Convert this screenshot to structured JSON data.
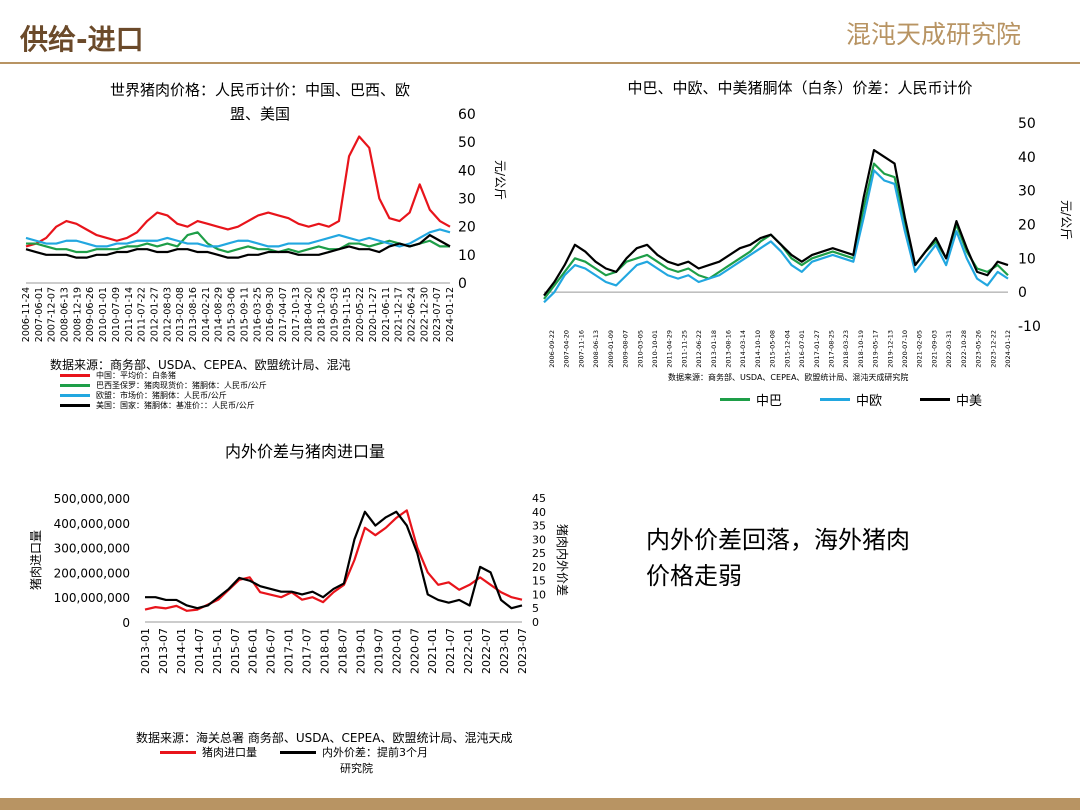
{
  "header": {
    "title": "供给-进口",
    "logo_text": "混沌天成研究院"
  },
  "colors": {
    "red": "#e8141b",
    "green": "#1e9e48",
    "blue": "#22a7e0",
    "black": "#000000",
    "gold": "#b89463",
    "brown": "#6b4a2a"
  },
  "note": {
    "line1": "内外价差回落，海外猪肉",
    "line2": "价格走弱"
  },
  "chart_data": [
    {
      "id": "world_pork_price",
      "type": "line",
      "title_line1": "世界猪肉价格：人民币计价：中国、巴西、欧",
      "title_line2": "盟、美国",
      "ylabel": "元/公斤",
      "ylim": [
        0,
        60
      ],
      "y_ticks": [
        "0",
        "10",
        "20",
        "30",
        "40",
        "50",
        "60"
      ],
      "x_ticks": [
        "2006-11-24",
        "2007-06-01",
        "2007-12-07",
        "2008-06-13",
        "2008-12-19",
        "2009-06-26",
        "2010-01-01",
        "2010-07-09",
        "2011-01-14",
        "2011-07-22",
        "2012-01-27",
        "2012-08-03",
        "2013-02-08",
        "2013-08-16",
        "2014-02-21",
        "2014-08-29",
        "2015-03-06",
        "2015-09-11",
        "2016-03-25",
        "2016-09-30",
        "2017-04-07",
        "2017-10-13",
        "2018-04-20",
        "2018-10-26",
        "2019-05-03",
        "2019-11-15",
        "2020-05-22",
        "2020-11-27",
        "2021-06-11",
        "2021-12-17",
        "2022-06-24",
        "2022-12-30",
        "2023-07-07",
        "2024-01-12"
      ],
      "source": "数据来源：商务部、USDA、CEPEA、欧盟统计局、混沌",
      "legend": [
        {
          "name": "中国：平均价：白条猪",
          "color": "#e8141b"
        },
        {
          "name": "巴西圣保罗：猪肉现货价：猪胴体：人民币/公斤",
          "color": "#1e9e48"
        },
        {
          "name": "欧盟：市场价：猪胴体：人民币/公斤",
          "color": "#22a7e0"
        },
        {
          "name": "美国：国家：猪胴体：基准价：：人民币/公斤",
          "color": "#000000"
        }
      ],
      "series": [
        {
          "name": "中国",
          "color": "#e8141b",
          "values": [
            13,
            14,
            16,
            20,
            22,
            21,
            19,
            17,
            16,
            15,
            16,
            18,
            22,
            25,
            24,
            21,
            20,
            22,
            21,
            20,
            19,
            20,
            22,
            24,
            25,
            24,
            23,
            21,
            20,
            21,
            20,
            22,
            45,
            52,
            48,
            30,
            23,
            22,
            25,
            35,
            26,
            22,
            20
          ]
        },
        {
          "name": "巴西",
          "color": "#1e9e48",
          "values": [
            14,
            14,
            13,
            12,
            12,
            11,
            11,
            12,
            12,
            12,
            13,
            13,
            14,
            13,
            14,
            13,
            17,
            18,
            14,
            12,
            11,
            12,
            13,
            12,
            12,
            11,
            12,
            11,
            12,
            13,
            12,
            12,
            14,
            14,
            13,
            14,
            15,
            14,
            13,
            14,
            15,
            13,
            13
          ]
        },
        {
          "name": "欧盟",
          "color": "#22a7e0",
          "values": [
            16,
            15,
            14,
            14,
            15,
            15,
            14,
            13,
            13,
            14,
            14,
            15,
            15,
            15,
            16,
            15,
            14,
            14,
            13,
            13,
            14,
            15,
            15,
            14,
            13,
            13,
            14,
            14,
            14,
            15,
            16,
            17,
            16,
            15,
            16,
            15,
            14,
            13,
            14,
            16,
            18,
            19,
            18
          ]
        },
        {
          "name": "美国",
          "color": "#000000",
          "values": [
            12,
            11,
            10,
            10,
            10,
            9,
            9,
            10,
            10,
            11,
            11,
            12,
            12,
            11,
            11,
            12,
            12,
            11,
            11,
            10,
            9,
            9,
            10,
            10,
            11,
            11,
            11,
            10,
            10,
            10,
            11,
            12,
            13,
            12,
            12,
            11,
            13,
            14,
            13,
            14,
            17,
            15,
            13
          ]
        }
      ]
    },
    {
      "id": "carcass_spread",
      "type": "line",
      "title": "中巴、中欧、中美猪胴体（白条）价差：人民币计价",
      "ylabel": "元/公斤",
      "ylim": [
        -10,
        50
      ],
      "y_ticks": [
        "-10",
        "0",
        "10",
        "20",
        "30",
        "40",
        "50"
      ],
      "x_ticks": [
        "2006-09-22",
        "2007-04-20",
        "2007-11-16",
        "2008-06-13",
        "2009-01-09",
        "2009-08-07",
        "2010-03-05",
        "2010-10-01",
        "2011-04-29",
        "2011-11-25",
        "2012-06-22",
        "2013-01-18",
        "2013-08-16",
        "2014-03-14",
        "2014-10-10",
        "2015-05-08",
        "2015-12-04",
        "2016-07-01",
        "2017-01-27",
        "2017-08-25",
        "2018-03-23",
        "2018-10-19",
        "2019-05-17",
        "2019-12-13",
        "2020-07-10",
        "2021-02-05",
        "2021-09-03",
        "2022-03-31",
        "2022-10-28",
        "2023-05-26",
        "2023-12-22",
        "2024-01-12"
      ],
      "source": "数据来源：商务部、USDA、CEPEA、欧盟统计局、混沌天成研究院",
      "legend": [
        {
          "name": "中巴",
          "color": "#1e9e48"
        },
        {
          "name": "中欧",
          "color": "#22a7e0"
        },
        {
          "name": "中美",
          "color": "#000000"
        }
      ],
      "series": [
        {
          "name": "中巴",
          "color": "#1e9e48",
          "values": [
            -2,
            2,
            6,
            10,
            9,
            7,
            5,
            6,
            9,
            10,
            11,
            9,
            7,
            6,
            7,
            5,
            4,
            6,
            8,
            10,
            12,
            15,
            17,
            14,
            10,
            8,
            10,
            11,
            12,
            11,
            10,
            25,
            38,
            35,
            34,
            20,
            8,
            12,
            15,
            10,
            20,
            12,
            7,
            6,
            8,
            5
          ]
        },
        {
          "name": "中欧",
          "color": "#22a7e0",
          "values": [
            -3,
            0,
            5,
            8,
            7,
            5,
            3,
            2,
            5,
            8,
            9,
            7,
            5,
            4,
            5,
            3,
            4,
            5,
            7,
            9,
            11,
            13,
            15,
            12,
            8,
            6,
            9,
            10,
            11,
            10,
            9,
            22,
            36,
            33,
            32,
            18,
            6,
            10,
            14,
            8,
            18,
            10,
            4,
            2,
            6,
            4
          ]
        },
        {
          "name": "中美",
          "color": "#000000",
          "values": [
            -1,
            3,
            8,
            14,
            12,
            9,
            7,
            6,
            10,
            13,
            14,
            11,
            9,
            8,
            9,
            7,
            8,
            9,
            11,
            13,
            14,
            16,
            17,
            14,
            11,
            9,
            11,
            12,
            13,
            12,
            11,
            28,
            42,
            40,
            38,
            22,
            8,
            12,
            16,
            10,
            21,
            13,
            6,
            5,
            9,
            8
          ]
        }
      ]
    },
    {
      "id": "spread_vs_import",
      "type": "line",
      "title": "内外价差与猪肉进口量",
      "ylabel_left": "猪肉进口量",
      "ylabel_right": "猪肉内外价差",
      "ylim_left": [
        0,
        500000000
      ],
      "ylim_right": [
        0,
        45
      ],
      "y_ticks_left": [
        "0",
        "100,000,000",
        "200,000,000",
        "300,000,000",
        "400,000,000",
        "500,000,000"
      ],
      "y_ticks_right": [
        "0",
        "5",
        "10",
        "15",
        "20",
        "25",
        "30",
        "35",
        "40",
        "45"
      ],
      "x_ticks": [
        "2013-01",
        "2013-07",
        "2014-01",
        "2014-07",
        "2015-01",
        "2015-07",
        "2016-01",
        "2016-07",
        "2017-01",
        "2017-07",
        "2018-01",
        "2018-07",
        "2019-01",
        "2019-07",
        "2020-01",
        "2020-07",
        "2021-01",
        "2021-07",
        "2022-01",
        "2022-07",
        "2023-01",
        "2023-07"
      ],
      "source": "数据来源：海关总署 商务部、USDA、CEPEA、欧盟统计局、混沌天成",
      "source_line2": "研究院",
      "legend": [
        {
          "name": "猪肉进口量",
          "color": "#e8141b"
        },
        {
          "name": "内外价差：提前3个月",
          "color": "#000000"
        }
      ],
      "series": [
        {
          "name": "猪肉进口量",
          "axis": "left",
          "color": "#e8141b",
          "values": [
            50000000,
            60000000,
            55000000,
            65000000,
            45000000,
            50000000,
            70000000,
            90000000,
            130000000,
            170000000,
            180000000,
            120000000,
            110000000,
            100000000,
            120000000,
            90000000,
            100000000,
            80000000,
            120000000,
            150000000,
            250000000,
            380000000,
            350000000,
            380000000,
            420000000,
            450000000,
            300000000,
            200000000,
            150000000,
            160000000,
            130000000,
            150000000,
            180000000,
            150000000,
            120000000,
            100000000,
            90000000
          ]
        },
        {
          "name": "内外价差：提前3个月",
          "axis": "right",
          "color": "#000000",
          "values": [
            9,
            9,
            8,
            8,
            6,
            5,
            6,
            9,
            12,
            16,
            15,
            13,
            12,
            11,
            11,
            10,
            11,
            9,
            12,
            14,
            30,
            40,
            35,
            38,
            40,
            35,
            25,
            10,
            8,
            7,
            8,
            6,
            20,
            18,
            8,
            5,
            6
          ]
        }
      ]
    }
  ]
}
